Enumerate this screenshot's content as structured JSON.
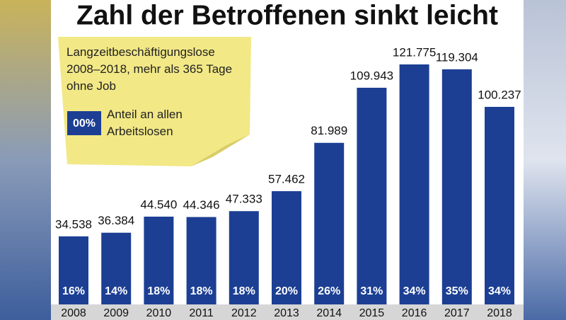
{
  "chart_data": {
    "type": "bar",
    "title": "Zahl der Betroffenen sinkt leicht",
    "categories": [
      "2008",
      "2009",
      "2010",
      "2011",
      "2012",
      "2013",
      "2014",
      "2015",
      "2016",
      "2017",
      "2018"
    ],
    "series": [
      {
        "name": "Langzeitbeschäftigungslose 2008–2018, mehr als 365 Tage ohne Job",
        "color": "#1c3f94",
        "values": [
          34538,
          36384,
          44540,
          44346,
          47333,
          57462,
          81989,
          109943,
          121775,
          119304,
          100237
        ],
        "value_labels": [
          "34.538",
          "36.384",
          "44.540",
          "44.346",
          "47.333",
          "57.462",
          "81.989",
          "109.943",
          "121.775",
          "119.304",
          "100.237"
        ]
      },
      {
        "name": "Anteil an allen Arbeitslosen",
        "color": "#ffffff",
        "values": [
          16,
          14,
          18,
          18,
          18,
          20,
          26,
          31,
          34,
          35,
          34
        ],
        "value_labels": [
          "16%",
          "14%",
          "18%",
          "18%",
          "18%",
          "20%",
          "26%",
          "31%",
          "34%",
          "35%",
          "34%"
        ]
      }
    ],
    "legend_swatch_label": "00%"
  }
}
